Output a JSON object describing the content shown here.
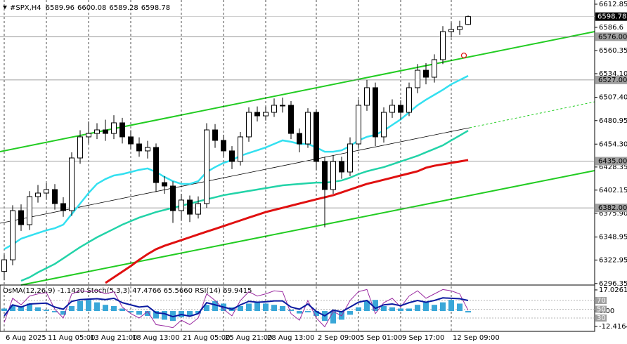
{
  "chart_data": [
    {
      "type": "candlestick",
      "title": "#SPX,H4",
      "categories": [
        "6 Aug 2025",
        null,
        null,
        null,
        null,
        "11 Aug 05:00",
        null,
        null,
        null,
        null,
        "13 Aug 21:00",
        null,
        null,
        null,
        null,
        "18 Aug 13:00",
        null,
        null,
        null,
        null,
        null,
        "21 Aug 05:00",
        null,
        null,
        null,
        null,
        "25 Aug 21:00",
        null,
        null,
        null,
        null,
        "28 Aug 13:00",
        null,
        null,
        null,
        null,
        null,
        "2 Sep 09:00",
        null,
        null,
        null,
        null,
        "5 Sep 01:00",
        null,
        null,
        null,
        null,
        "9 Sep 17:00",
        null,
        null,
        null,
        null,
        null,
        "12 Sep 09:00",
        null,
        null
      ],
      "open": [
        6310.0,
        6323.2,
        6378.9,
        6363.0,
        6394.8,
        6398.8,
        6402.8,
        6386.9,
        6378.9,
        6438.6,
        6462.5,
        6466.4,
        6470.4,
        6466.4,
        6478.4,
        6462.5,
        6454.5,
        6446.6,
        6450.5,
        6410.7,
        6406.8,
        6378.9,
        6390.9,
        6374.9,
        6386.9,
        6470.4,
        6458.5,
        6446.6,
        6434.6,
        6462.5,
        6490.3,
        6486.3,
        6490.3,
        6498.3,
        6498.3,
        6466.4,
        6454.5,
        6490.3,
        6434.6,
        6402.8,
        6434.6,
        6422.7,
        6454.5,
        6498.3,
        6518.2,
        6462.5,
        6490.3,
        6498.3,
        6490.3,
        6518.2,
        6538.0,
        6530.1,
        6550.0,
        6581.8,
        6584.2,
        6589.96
      ],
      "high": [
        6329.2,
        6385,
        6386,
        6401,
        6408,
        6410,
        6409,
        6394,
        6445,
        6470,
        6480,
        6478,
        6482,
        6487,
        6484,
        6470,
        6462,
        6458,
        6455,
        6418,
        6412,
        6398,
        6396,
        6395,
        6478,
        6477,
        6465,
        6452,
        6468,
        6496,
        6497,
        6497,
        6506,
        6507,
        6503,
        6472,
        6495,
        6494,
        6440,
        6442,
        6440,
        6462,
        6505,
        6527,
        6524,
        6496,
        6505,
        6504,
        6524,
        6545,
        6546,
        6556,
        6588,
        6592,
        6594,
        6600.08
      ],
      "low": [
        6300,
        6317,
        6356,
        6357,
        6388,
        6392,
        6380,
        6372,
        6373,
        6432,
        6455,
        6460,
        6458,
        6460,
        6455,
        6448,
        6440,
        6438,
        6400,
        6398,
        6365,
        6368,
        6366,
        6370,
        6382,
        6450,
        6440,
        6426,
        6430,
        6457,
        6480,
        6481,
        6485,
        6490,
        6460,
        6445,
        6450,
        6425,
        6360,
        6398,
        6415,
        6418,
        6450,
        6492,
        6452,
        6456,
        6484,
        6482,
        6486,
        6512,
        6522,
        6524,
        6545,
        6575,
        6578,
        6589.28
      ],
      "close": [
        6323.2,
        6378.9,
        6363.0,
        6394.8,
        6398.8,
        6402.8,
        6386.9,
        6378.9,
        6438.6,
        6462.5,
        6466.4,
        6470.4,
        6466.4,
        6478.4,
        6462.5,
        6454.5,
        6446.6,
        6450.5,
        6410.7,
        6406.8,
        6378.9,
        6390.9,
        6374.9,
        6386.9,
        6470.4,
        6458.5,
        6446.6,
        6434.6,
        6462.5,
        6490.3,
        6486.3,
        6490.3,
        6498.3,
        6498.3,
        6466.4,
        6454.5,
        6490.3,
        6434.6,
        6402.8,
        6434.6,
        6422.7,
        6454.5,
        6498.3,
        6518.2,
        6462.5,
        6490.3,
        6498.3,
        6490.3,
        6518.2,
        6538.0,
        6530.1,
        6550.0,
        6581.8,
        6584.2,
        6587.4,
        6598.78
      ],
      "up_color": "#ffffff",
      "down_color": "#000000",
      "wick_color": "#000000",
      "series": [
        {
          "color": "#33e0f0",
          "values": [
            6335.2,
            6340.7,
            6347.1,
            6350.3,
            6353.5,
            6356.6,
            6359.0,
            6363.0,
            6374.9,
            6386.9,
            6398.8,
            6409.2,
            6414.7,
            6418.7,
            6420.3,
            6422.7,
            6425.1,
            6426.7,
            6422.7,
            6417.1,
            6412.3,
            6409.2,
            6409.2,
            6412.3,
            6422.7,
            6428.2,
            6433.0,
            6436.2,
            6441.0,
            6444.2,
            6447.3,
            6450.5,
            6454.5,
            6458.5,
            6456.9,
            6454.5,
            6454.5,
            6450.5,
            6445.7,
            6445.7,
            6447.3,
            6452.1,
            6458.5,
            6462.5,
            6464.8,
            6469.6,
            6476.0,
            6482.3,
            6490.3,
            6498.3,
            6504.6,
            6510.2,
            6515.8,
            6522.1,
            6526.9,
            6531.7
          ]
        },
        {
          "color": "#22d3a8",
          "values": [
            null,
            null,
            6299.4,
            6303.3,
            6308.9,
            6313.7,
            6318.5,
            6324.8,
            6331.2,
            6337.5,
            6343.1,
            6348.7,
            6353.5,
            6358.2,
            6363.0,
            6367.0,
            6371.0,
            6374.1,
            6377.3,
            6379.7,
            6382.1,
            6384.5,
            6386.9,
            6389.3,
            6391.7,
            6394.0,
            6396.4,
            6398.0,
            6399.6,
            6401.2,
            6402.8,
            6404.4,
            6406.0,
            6407.6,
            6408.4,
            6409.2,
            6410.0,
            6410.7,
            6410.7,
            6411.5,
            6413.1,
            6416.3,
            6420.3,
            6423.5,
            6425.9,
            6428.2,
            6431.4,
            6434.6,
            6437.8,
            6441.0,
            6445.0,
            6448.9,
            6452.9,
            6458.5,
            6464.0,
            6469.6
          ]
        },
        {
          "color": "#e01010",
          "values": [
            null,
            null,
            null,
            null,
            null,
            null,
            null,
            null,
            null,
            null,
            null,
            null,
            6297.0,
            6303.3,
            6309.7,
            6316.1,
            6323.2,
            6329.6,
            6335.2,
            6339.1,
            6342.3,
            6345.5,
            6348.7,
            6351.9,
            6355.1,
            6358.2,
            6361.4,
            6364.6,
            6367.8,
            6371.0,
            6374.1,
            6377.3,
            6379.7,
            6382.1,
            6384.5,
            6386.9,
            6389.3,
            6391.7,
            6394.0,
            6396.4,
            6399.6,
            6402.8,
            6406.0,
            6409.2,
            6411.5,
            6413.9,
            6416.3,
            6418.7,
            6421.1,
            6423.5,
            6427.5,
            6429.8,
            6431.4,
            6433.0,
            6434.6,
            6436.2
          ]
        }
      ],
      "levels": [
        {
          "value": 6576,
          "label": "6576.00"
        },
        {
          "value": 6527,
          "label": "6527.00"
        },
        {
          "value": 6435,
          "label": "6435.00"
        },
        {
          "value": 6382,
          "label": "6382.00"
        }
      ],
      "ylim": [
        6294.6,
        6617.6
      ],
      "yticks": [
        6612.85,
        6586.6,
        6560.35,
        {
          "value": 6534.1,
          "label": "6534.10"
        },
        {
          "value": 6507.4,
          "label": "6507.40"
        },
        6480.95,
        {
          "value": 6454.3,
          "label": "6454.30"
        },
        6428.35,
        6402.15,
        {
          "value": 6375.9,
          "label": "6375.90"
        },
        6348.95,
        6322.95,
        6296.35
      ]
    },
    {
      "type": "bar",
      "title": "OsMA(12,26,9) -1.1420  Stoch(5,3,3) 47.4766 65.5660  RSI(14) 69.9415",
      "color": "#3aa7d8",
      "values": [
        2,
        5,
        4,
        6,
        3,
        1,
        -1,
        -3,
        4,
        8,
        9,
        7,
        5,
        4,
        2,
        -1,
        -3,
        -4,
        -6,
        -7,
        -8,
        -5,
        -4,
        -2,
        5,
        8,
        6,
        3,
        4,
        6,
        7,
        6,
        5,
        4,
        1,
        -2,
        -1,
        -4,
        -8,
        -10,
        -7,
        -3,
        3,
        8,
        9,
        4,
        3,
        2,
        2,
        5,
        7,
        5,
        7,
        9,
        6,
        -1.142
      ],
      "series": [
        {
          "color": "#9a2aa0",
          "axis": "y2",
          "values": [
            20,
            75,
            60,
            80,
            85,
            88,
            50,
            30,
            85,
            92,
            90,
            93,
            85,
            90,
            55,
            40,
            30,
            45,
            15,
            12,
            8,
            25,
            15,
            30,
            85,
            70,
            50,
            35,
            70,
            90,
            80,
            85,
            92,
            90,
            40,
            25,
            70,
            30,
            10,
            45,
            35,
            70,
            90,
            95,
            40,
            65,
            75,
            55,
            80,
            92,
            75,
            85,
            95,
            92,
            85,
            47.4766
          ]
        },
        {
          "color": "#0a1aa0",
          "axis": "y2",
          "values": [
            35,
            60,
            55,
            62,
            63,
            64,
            55,
            50,
            68,
            72,
            73,
            74,
            72,
            75,
            65,
            60,
            55,
            57,
            42,
            40,
            33,
            38,
            34,
            40,
            65,
            60,
            55,
            50,
            60,
            68,
            66,
            67,
            69,
            69,
            55,
            50,
            62,
            45,
            35,
            48,
            44,
            55,
            66,
            70,
            52,
            60,
            62,
            58,
            65,
            70,
            66,
            70,
            76,
            75,
            74,
            69.9415
          ]
        }
      ],
      "ylim": [
        -16.4,
        20.4
      ],
      "yticks": [
        17.0261,
        {
          "value": 0,
          "label": "0.00"
        },
        -12.4164
      ],
      "y2lim": [
        -0.4,
        103.6
      ],
      "y2ticks": [
        70,
        50,
        30
      ]
    }
  ]
}
